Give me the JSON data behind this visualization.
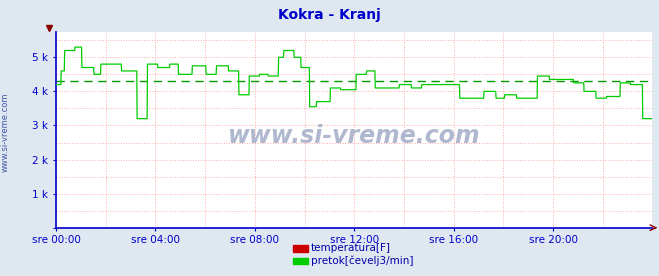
{
  "title": "Kokra - Kranj",
  "title_color": "#0000cc",
  "title_fontsize": 10,
  "bg_color": "#dfe8f0",
  "plot_bg_color": "#ffffff",
  "grid_color": "#ffaaaa",
  "axis_color": "#0000cc",
  "tick_color": "#0000aa",
  "watermark": "www.si-vreme.com",
  "watermark_color": "#b0b8d0",
  "ylim": [
    0,
    5750
  ],
  "yticks": [
    0,
    1000,
    2000,
    3000,
    4000,
    5000
  ],
  "ytick_labels": [
    "",
    "1 k",
    "2 k",
    "3 k",
    "4 k",
    "5 k"
  ],
  "xtick_labels": [
    "sre 00:00",
    "sre 04:00",
    "sre 08:00",
    "sre 12:00",
    "sre 16:00",
    "sre 20:00"
  ],
  "xtick_positions": [
    0,
    288,
    576,
    864,
    1152,
    1440
  ],
  "total_points": 1728,
  "flow_color": "#00cc00",
  "flow_avg_color": "#009900",
  "flow_avg": 4300,
  "temp_color": "#cc0000",
  "legend_labels": [
    "temperatura[F]",
    "pretok[čevelj3/min]"
  ],
  "legend_colors": [
    "#cc0000",
    "#00cc00"
  ],
  "sidebar_text": "www.si-vreme.com",
  "sidebar_color": "#4455aa"
}
